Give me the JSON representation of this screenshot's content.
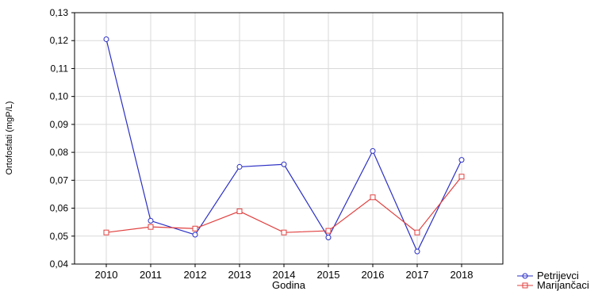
{
  "chart_data": {
    "type": "line",
    "categories": [
      "2010",
      "2011",
      "2012",
      "2013",
      "2014",
      "2015",
      "2016",
      "2017",
      "2018"
    ],
    "series": [
      {
        "name": "Petrijevci",
        "color": "#2b2fc4",
        "marker": "circle",
        "values": [
          0.1205,
          0.0555,
          0.0505,
          0.0748,
          0.0757,
          0.0495,
          0.0805,
          0.0445,
          0.0773
        ]
      },
      {
        "name": "Marijančaci",
        "color": "#e0403f",
        "marker": "square",
        "values": [
          0.0513,
          0.0533,
          0.0527,
          0.0589,
          0.0513,
          0.0519,
          0.0639,
          0.0513,
          0.0713
        ]
      }
    ],
    "xlabel": "Godina",
    "ylabel": "Ortofosfati (mgP/L)",
    "ylim": [
      0.04,
      0.13
    ],
    "yticks": [
      "0,04",
      "0,05",
      "0,06",
      "0,07",
      "0,08",
      "0,09",
      "0,10",
      "0,11",
      "0,12",
      "0,13"
    ],
    "grid": true,
    "legend_position": "bottom-right"
  }
}
